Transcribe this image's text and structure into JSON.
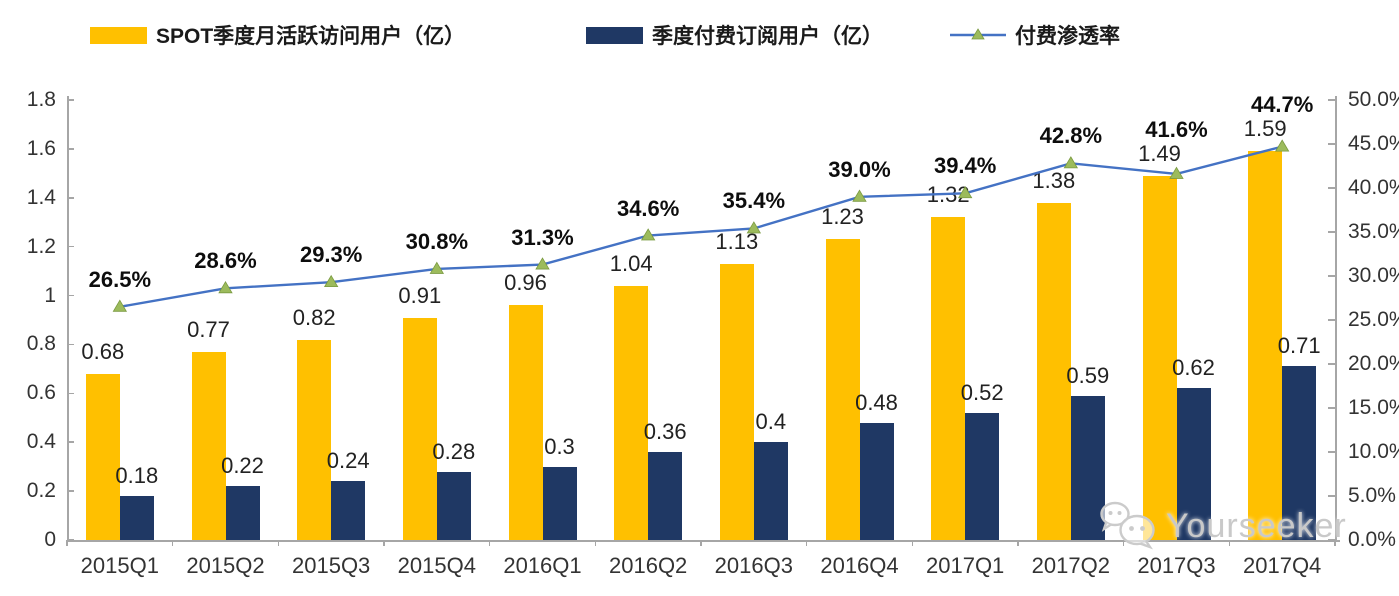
{
  "legend": {
    "items": [
      {
        "label": "SPOT季度月活跃访问用户（亿）",
        "swatch": "yellow-bar",
        "color": "#FFC000"
      },
      {
        "label": "季度付费订阅用户（亿）",
        "swatch": "navy-bar",
        "color": "#1F3864"
      },
      {
        "label": "付费渗透率",
        "swatch": "line-marker",
        "color": "#4472C4",
        "marker_color": "#9CBB5C"
      }
    ]
  },
  "watermark": {
    "text": "Yourseeker",
    "icon": "wechat-icon"
  },
  "chart_data": {
    "type": "bar",
    "subtype": "clustered-bars-with-line",
    "title": "",
    "categories": [
      "2015Q1",
      "2015Q2",
      "2015Q3",
      "2015Q4",
      "2016Q1",
      "2016Q2",
      "2016Q3",
      "2016Q4",
      "2017Q1",
      "2017Q2",
      "2017Q3",
      "2017Q4"
    ],
    "series": [
      {
        "name": "SPOT季度月活跃访问用户（亿）",
        "type": "bar",
        "axis": "left",
        "color": "#FFC000",
        "values": [
          0.68,
          0.77,
          0.82,
          0.91,
          0.96,
          1.04,
          1.13,
          1.23,
          1.32,
          1.38,
          1.49,
          1.59
        ],
        "labels": [
          "0.68",
          "0.77",
          "0.82",
          "0.91",
          "0.96",
          "1.04",
          "1.13",
          "1.23",
          "1.32",
          "1.38",
          "1.49",
          "1.59"
        ]
      },
      {
        "name": "季度付费订阅用户（亿）",
        "type": "bar",
        "axis": "left",
        "color": "#1F3864",
        "values": [
          0.18,
          0.22,
          0.24,
          0.28,
          0.3,
          0.36,
          0.4,
          0.48,
          0.52,
          0.59,
          0.62,
          0.71
        ],
        "labels": [
          "0.18",
          "0.22",
          "0.24",
          "0.28",
          "0.3",
          "0.36",
          "0.4",
          "0.48",
          "0.52",
          "0.59",
          "0.62",
          "0.71"
        ]
      },
      {
        "name": "付费渗透率",
        "type": "line",
        "axis": "right",
        "color": "#4472C4",
        "marker": "triangle",
        "marker_color": "#9CBB5C",
        "values": [
          26.5,
          28.6,
          29.3,
          30.8,
          31.3,
          34.6,
          35.4,
          39.0,
          39.4,
          42.8,
          41.6,
          44.7
        ],
        "labels": [
          "26.5%",
          "28.6%",
          "29.3%",
          "30.8%",
          "31.3%",
          "34.6%",
          "35.4%",
          "39.0%",
          "39.4%",
          "42.8%",
          "41.6%",
          "44.7%"
        ]
      }
    ],
    "left_axis": {
      "min": 0,
      "max": 1.8,
      "step": 0.2,
      "tick_labels": [
        "0",
        "0.2",
        "0.4",
        "0.6",
        "0.8",
        "1",
        "1.2",
        "1.4",
        "1.6",
        "1.8"
      ]
    },
    "right_axis": {
      "min": 0,
      "max": 50,
      "step": 5,
      "tick_labels": [
        "0.0%",
        "5.0%",
        "10.0%",
        "15.0%",
        "20.0%",
        "25.0%",
        "30.0%",
        "35.0%",
        "40.0%",
        "45.0%",
        "50.0%"
      ]
    },
    "grid": false,
    "legend_position": "top"
  }
}
